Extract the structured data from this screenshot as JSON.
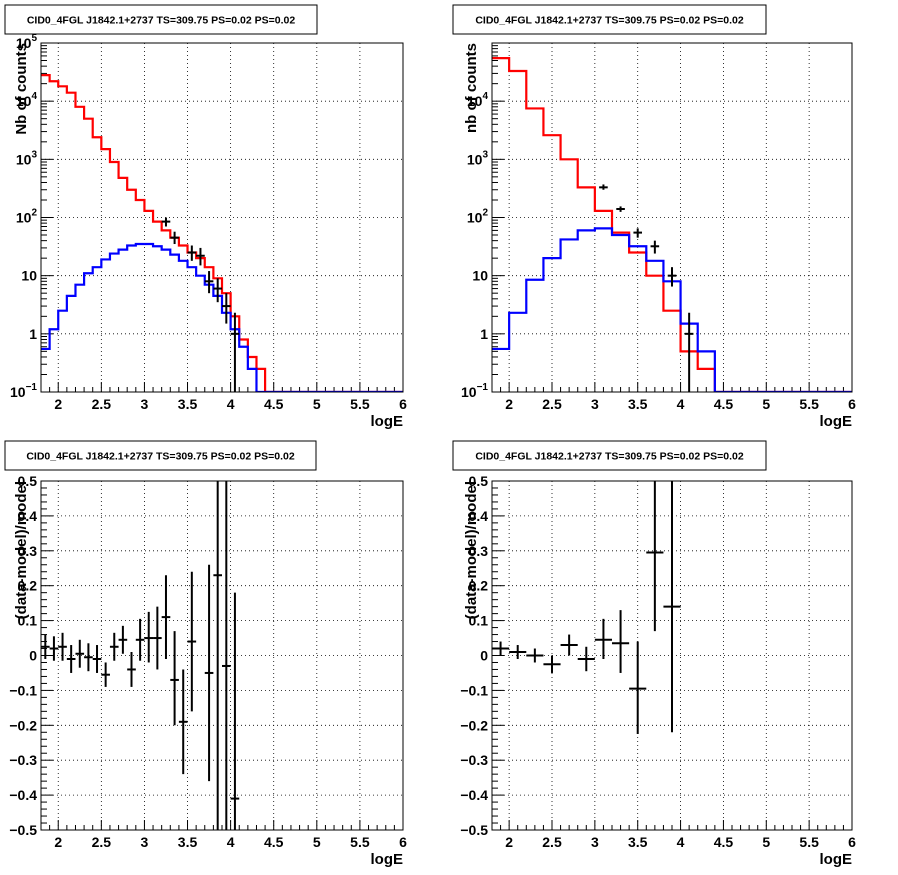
{
  "chart_data": [
    {
      "type": "line",
      "title": "CID0_4FGL J1842.1+2737 TS=309.75 PS=0.02 PS=0.02",
      "xlabel": "logE",
      "ylabel": "Nb of counts",
      "log_y": true,
      "xlim": [
        1.8,
        6.0
      ],
      "ylim": [
        0.1,
        100000
      ],
      "grid": true,
      "bin_edges": [
        1.8,
        1.9,
        2.0,
        2.1,
        2.2,
        2.3,
        2.4,
        2.5,
        2.6,
        2.7,
        2.8,
        2.9,
        3.0,
        3.1,
        3.2,
        3.3,
        3.4,
        3.5,
        3.6,
        3.7,
        3.8,
        3.9,
        4.0,
        4.1,
        4.2,
        4.3,
        4.4,
        4.5,
        4.6,
        4.7,
        4.8,
        4.9,
        5.0,
        5.1,
        5.2,
        5.3,
        5.4,
        5.5,
        5.6,
        5.7,
        5.8,
        5.9,
        6.0
      ],
      "xticks": [
        2,
        2.5,
        3,
        3.5,
        4,
        4.5,
        5,
        5.5,
        6
      ],
      "xtick_labels": [
        "2",
        "2.5",
        "3",
        "3.5",
        "4",
        "4.5",
        "5",
        "5.5",
        "6"
      ],
      "ytick_labels": [
        {
          "base": "10",
          "exp": "−1",
          "v": 0.1
        },
        {
          "base": "1",
          "exp": "",
          "v": 1
        },
        {
          "base": "10",
          "exp": "",
          "v": 10
        },
        {
          "base": "10",
          "exp": "2",
          "v": 100
        },
        {
          "base": "10",
          "exp": "3",
          "v": 1000
        },
        {
          "base": "10",
          "exp": "4",
          "v": 10000
        },
        {
          "base": "10",
          "exp": "5",
          "v": 100000
        }
      ],
      "series": [
        {
          "color": "#ff0000",
          "values": [
            28000,
            22000,
            18000,
            14000,
            8000,
            5000,
            2400,
            1500,
            900,
            480,
            300,
            200,
            130,
            85,
            60,
            45,
            33,
            25,
            20,
            14,
            9,
            5,
            2,
            0.8,
            0.4,
            0.25,
            0.1,
            0.1,
            0.1,
            0.1,
            0.1,
            0.1,
            0.1,
            0.1,
            0.1,
            0.1,
            0.1,
            0.1,
            0.1,
            0.1,
            0.1,
            0.1
          ]
        },
        {
          "color": "#0000ff",
          "values": [
            0.55,
            1.2,
            2.5,
            4.5,
            7,
            11,
            14,
            19,
            24,
            28,
            33,
            35,
            35,
            32,
            28,
            23,
            18,
            14,
            10,
            7,
            4.5,
            2.3,
            1.2,
            0.6,
            0.25,
            0.1,
            0.1,
            0.1,
            0.1,
            0.1,
            0.1,
            0.1,
            0.1,
            0.1,
            0.1,
            0.1,
            0.1,
            0.1,
            0.1,
            0.1,
            0.1,
            0.1
          ]
        }
      ],
      "points": [
        {
          "x": 3.25,
          "y": 85,
          "lo": 70,
          "hi": 100
        },
        {
          "x": 3.35,
          "y": 45,
          "lo": 35,
          "hi": 57
        },
        {
          "x": 3.55,
          "y": 25,
          "lo": 18,
          "hi": 33
        },
        {
          "x": 3.65,
          "y": 22,
          "lo": 15,
          "hi": 30
        },
        {
          "x": 3.75,
          "y": 8,
          "lo": 5,
          "hi": 12
        },
        {
          "x": 3.85,
          "y": 6,
          "lo": 3.5,
          "hi": 9
        },
        {
          "x": 3.95,
          "y": 3,
          "lo": 1.5,
          "hi": 5
        },
        {
          "x": 4.05,
          "y": 1,
          "lo": 0.1,
          "hi": 2.3
        }
      ]
    },
    {
      "type": "line",
      "title": "CID0_4FGL J1842.1+2737 TS=309.75 PS=0.02 PS=0.02",
      "xlabel": "logE",
      "ylabel": "nb of counts",
      "log_y": true,
      "xlim": [
        1.8,
        6.0
      ],
      "ylim": [
        0.1,
        100000
      ],
      "grid": true,
      "bin_edges": [
        1.8,
        2.0,
        2.2,
        2.4,
        2.6,
        2.8,
        3.0,
        3.2,
        3.4,
        3.6,
        3.8,
        4.0,
        4.2,
        4.4,
        4.6,
        4.8,
        5.0,
        5.2,
        5.4,
        5.6,
        5.8,
        6.0
      ],
      "xticks": [
        2,
        2.5,
        3,
        3.5,
        4,
        4.5,
        5,
        5.5,
        6
      ],
      "xtick_labels": [
        "2",
        "2.5",
        "3",
        "3.5",
        "4",
        "4.5",
        "5",
        "5.5",
        "6"
      ],
      "ytick_labels": [
        {
          "base": "10",
          "exp": "−1",
          "v": 0.1
        },
        {
          "base": "1",
          "exp": "",
          "v": 1
        },
        {
          "base": "10",
          "exp": "",
          "v": 10
        },
        {
          "base": "10",
          "exp": "2",
          "v": 100
        },
        {
          "base": "10",
          "exp": "3",
          "v": 1000
        },
        {
          "base": "10",
          "exp": "4",
          "v": 10000
        }
      ],
      "series": [
        {
          "color": "#ff0000",
          "values": [
            55000,
            33000,
            7500,
            2600,
            1000,
            330,
            130,
            55,
            25,
            10,
            2.5,
            0.5,
            0.25,
            0.1,
            0.1,
            0.1,
            0.1,
            0.1,
            0.1,
            0.1,
            0.1
          ]
        },
        {
          "color": "#0000ff",
          "values": [
            0.55,
            2.3,
            8.5,
            20,
            42,
            60,
            65,
            50,
            32,
            18,
            8,
            1.5,
            0.5,
            0.1,
            0.1,
            0.1,
            0.1,
            0.1,
            0.1,
            0.1,
            0.1
          ]
        }
      ],
      "points": [
        {
          "x": 3.1,
          "y": 330,
          "lo": 300,
          "hi": 370
        },
        {
          "x": 3.3,
          "y": 140,
          "lo": 125,
          "hi": 155
        },
        {
          "x": 3.5,
          "y": 55,
          "lo": 45,
          "hi": 65
        },
        {
          "x": 3.7,
          "y": 32,
          "lo": 24,
          "hi": 40
        },
        {
          "x": 3.9,
          "y": 10,
          "lo": 6.5,
          "hi": 14
        },
        {
          "x": 4.1,
          "y": 1,
          "lo": 0.1,
          "hi": 2.3
        }
      ]
    },
    {
      "type": "scatter",
      "title": "CID0_4FGL J1842.1+2737 TS=309.75 PS=0.02 PS=0.02",
      "xlabel": "logE",
      "ylabel": "(data-model)/model",
      "log_y": false,
      "xlim": [
        1.8,
        6.0
      ],
      "ylim": [
        -0.5,
        0.5
      ],
      "grid": true,
      "xticks": [
        2,
        2.5,
        3,
        3.5,
        4,
        4.5,
        5,
        5.5,
        6
      ],
      "xtick_labels": [
        "2",
        "2.5",
        "3",
        "3.5",
        "4",
        "4.5",
        "5",
        "5.5",
        "6"
      ],
      "yticks": [
        -0.5,
        -0.4,
        -0.3,
        -0.2,
        -0.1,
        0,
        0.1,
        0.2,
        0.3,
        0.4,
        0.5
      ],
      "ytick_labels": [
        "−0.5",
        "−0.4",
        "−0.3",
        "−0.2",
        "−0.1",
        "0",
        "0.1",
        "0.2",
        "0.3",
        "0.4",
        "0.5"
      ],
      "xerr": 0.05,
      "points": [
        {
          "x": 1.85,
          "y": 0.025,
          "lo": -0.01,
          "hi": 0.06
        },
        {
          "x": 1.95,
          "y": 0.02,
          "lo": -0.015,
          "hi": 0.055
        },
        {
          "x": 2.05,
          "y": 0.025,
          "lo": -0.015,
          "hi": 0.065
        },
        {
          "x": 2.15,
          "y": -0.01,
          "lo": -0.05,
          "hi": 0.03
        },
        {
          "x": 2.25,
          "y": 0.005,
          "lo": -0.035,
          "hi": 0.045
        },
        {
          "x": 2.35,
          "y": -0.005,
          "lo": -0.045,
          "hi": 0.035
        },
        {
          "x": 2.45,
          "y": -0.01,
          "lo": -0.05,
          "hi": 0.03
        },
        {
          "x": 2.55,
          "y": -0.055,
          "lo": -0.09,
          "hi": -0.02
        },
        {
          "x": 2.65,
          "y": 0.025,
          "lo": -0.015,
          "hi": 0.065
        },
        {
          "x": 2.75,
          "y": 0.045,
          "lo": 0.005,
          "hi": 0.085
        },
        {
          "x": 2.85,
          "y": -0.04,
          "lo": -0.09,
          "hi": 0.01
        },
        {
          "x": 2.95,
          "y": 0.045,
          "lo": -0.015,
          "hi": 0.105
        },
        {
          "x": 3.05,
          "y": 0.05,
          "lo": -0.02,
          "hi": 0.125
        },
        {
          "x": 3.15,
          "y": 0.05,
          "lo": -0.04,
          "hi": 0.14
        },
        {
          "x": 3.25,
          "y": 0.11,
          "lo": -0.01,
          "hi": 0.23
        },
        {
          "x": 3.35,
          "y": -0.07,
          "lo": -0.2,
          "hi": 0.07
        },
        {
          "x": 3.45,
          "y": -0.19,
          "lo": -0.34,
          "hi": -0.04
        },
        {
          "x": 3.55,
          "y": 0.04,
          "lo": -0.16,
          "hi": 0.24
        },
        {
          "x": 3.75,
          "y": -0.05,
          "lo": -0.36,
          "hi": 0.26
        },
        {
          "x": 3.85,
          "y": 0.23,
          "lo": -0.6,
          "hi": 0.6
        },
        {
          "x": 3.95,
          "y": -0.03,
          "lo": -0.6,
          "hi": 0.6
        },
        {
          "x": 4.05,
          "y": -0.41,
          "lo": -0.6,
          "hi": 0.18
        }
      ]
    },
    {
      "type": "scatter",
      "title": "CID0_4FGL J1842.1+2737 TS=309.75 PS=0.02 PS=0.02",
      "xlabel": "logE",
      "ylabel": "(data-model)/model",
      "log_y": false,
      "xlim": [
        1.8,
        6.0
      ],
      "ylim": [
        -0.5,
        0.5
      ],
      "grid": true,
      "xticks": [
        2,
        2.5,
        3,
        3.5,
        4,
        4.5,
        5,
        5.5,
        6
      ],
      "xtick_labels": [
        "2",
        "2.5",
        "3",
        "3.5",
        "4",
        "4.5",
        "5",
        "5.5",
        "6"
      ],
      "yticks": [
        -0.5,
        -0.4,
        -0.3,
        -0.2,
        -0.1,
        0,
        0.1,
        0.2,
        0.3,
        0.4,
        0.5
      ],
      "ytick_labels": [
        "−0.5",
        "−0.4",
        "−0.3",
        "−0.2",
        "−0.1",
        "0",
        "0.1",
        "0.2",
        "0.3",
        "0.4",
        "0.5"
      ],
      "xerr": 0.1,
      "points": [
        {
          "x": 1.9,
          "y": 0.02,
          "lo": 0.0,
          "hi": 0.04
        },
        {
          "x": 2.1,
          "y": 0.01,
          "lo": -0.01,
          "hi": 0.03
        },
        {
          "x": 2.3,
          "y": 0.0,
          "lo": -0.02,
          "hi": 0.02
        },
        {
          "x": 2.5,
          "y": -0.025,
          "lo": -0.05,
          "hi": 0.0
        },
        {
          "x": 2.7,
          "y": 0.03,
          "lo": 0.0,
          "hi": 0.06
        },
        {
          "x": 2.9,
          "y": -0.01,
          "lo": -0.045,
          "hi": 0.025
        },
        {
          "x": 3.1,
          "y": 0.045,
          "lo": -0.01,
          "hi": 0.105
        },
        {
          "x": 3.3,
          "y": 0.035,
          "lo": -0.05,
          "hi": 0.13
        },
        {
          "x": 3.5,
          "y": -0.095,
          "lo": -0.225,
          "hi": 0.04
        },
        {
          "x": 3.7,
          "y": 0.295,
          "lo": 0.07,
          "hi": 0.6
        },
        {
          "x": 3.9,
          "y": 0.14,
          "lo": -0.22,
          "hi": 0.6
        }
      ]
    }
  ]
}
